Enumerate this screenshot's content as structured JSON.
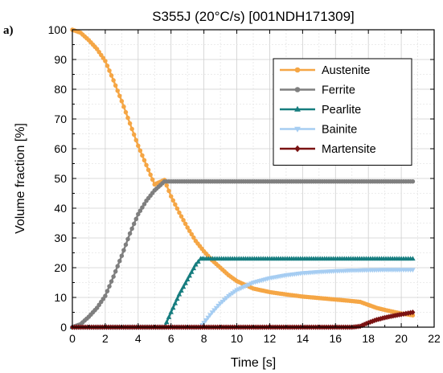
{
  "chart_data": {
    "type": "line",
    "panel_label": "a)",
    "title": "S355J (20°C/s) [001NDH171309]",
    "xlabel": "Time [s]",
    "ylabel": "Volume fraction [%]",
    "xlim": [
      0,
      22
    ],
    "ylim": [
      0,
      100
    ],
    "x_ticks": [
      0,
      2,
      4,
      6,
      8,
      10,
      12,
      14,
      16,
      18,
      20,
      22
    ],
    "y_ticks": [
      0,
      10,
      20,
      30,
      40,
      50,
      60,
      70,
      80,
      90,
      100
    ],
    "grid": true,
    "legend_position": "top-right",
    "series": [
      {
        "name": "Austenite",
        "color": "#F5A645",
        "marker": "circle",
        "points": [
          [
            0,
            100
          ],
          [
            0.5,
            99
          ],
          [
            1,
            96.5
          ],
          [
            1.5,
            93.5
          ],
          [
            2,
            89.5
          ],
          [
            2.5,
            83
          ],
          [
            3,
            76
          ],
          [
            3.5,
            68.5
          ],
          [
            4,
            61
          ],
          [
            4.5,
            54.5
          ],
          [
            5,
            48
          ],
          [
            5.6,
            49.5
          ],
          [
            6,
            44
          ],
          [
            6.5,
            38.5
          ],
          [
            7,
            33.5
          ],
          [
            7.5,
            29
          ],
          [
            8,
            25.5
          ],
          [
            8.5,
            22.5
          ],
          [
            9,
            20
          ],
          [
            9.5,
            17.5
          ],
          [
            10,
            15.5
          ],
          [
            11,
            13
          ],
          [
            12,
            11.8
          ],
          [
            13,
            11
          ],
          [
            14,
            10.3
          ],
          [
            15,
            9.8
          ],
          [
            16,
            9.3
          ],
          [
            17,
            8.8
          ],
          [
            17.5,
            8.5
          ],
          [
            18,
            7.5
          ],
          [
            18.5,
            6.5
          ],
          [
            19,
            5.8
          ],
          [
            20,
            4.6
          ],
          [
            20.7,
            4
          ]
        ]
      },
      {
        "name": "Ferrite",
        "color": "#7F7F7F",
        "marker": "circle",
        "points": [
          [
            0,
            0
          ],
          [
            0.5,
            1
          ],
          [
            1,
            3.5
          ],
          [
            1.5,
            6.5
          ],
          [
            2,
            10.5
          ],
          [
            2.5,
            17
          ],
          [
            3,
            24
          ],
          [
            3.5,
            31.5
          ],
          [
            4,
            38
          ],
          [
            4.5,
            42.5
          ],
          [
            5,
            46
          ],
          [
            5.6,
            49
          ],
          [
            6,
            49
          ],
          [
            8,
            49
          ],
          [
            10,
            49
          ],
          [
            12,
            49
          ],
          [
            14,
            49
          ],
          [
            16,
            49
          ],
          [
            18,
            49
          ],
          [
            20,
            49
          ],
          [
            20.7,
            49
          ]
        ]
      },
      {
        "name": "Pearlite",
        "color": "#167D7F",
        "marker": "triangle-up",
        "points": [
          [
            0,
            0
          ],
          [
            5.6,
            0
          ],
          [
            6,
            5
          ],
          [
            6.5,
            11
          ],
          [
            7,
            16
          ],
          [
            7.5,
            21
          ],
          [
            7.8,
            23
          ],
          [
            8,
            23
          ],
          [
            10,
            23
          ],
          [
            12,
            23
          ],
          [
            14,
            23
          ],
          [
            16,
            23
          ],
          [
            18,
            23
          ],
          [
            20,
            23
          ],
          [
            20.7,
            23
          ]
        ]
      },
      {
        "name": "Bainite",
        "color": "#A6CDF2",
        "marker": "triangle-down",
        "points": [
          [
            0,
            0
          ],
          [
            7.8,
            0
          ],
          [
            8,
            1.5
          ],
          [
            8.5,
            5
          ],
          [
            9,
            8
          ],
          [
            9.5,
            10.5
          ],
          [
            10,
            12.5
          ],
          [
            11,
            15
          ],
          [
            12,
            16.5
          ],
          [
            13,
            17.5
          ],
          [
            14,
            18.2
          ],
          [
            15,
            18.6
          ],
          [
            16,
            18.9
          ],
          [
            17,
            19.1
          ],
          [
            18,
            19.2
          ],
          [
            19,
            19.3
          ],
          [
            20,
            19.3
          ],
          [
            20.7,
            19.3
          ]
        ]
      },
      {
        "name": "Martensite",
        "color": "#7A1212",
        "marker": "diamond",
        "points": [
          [
            0,
            0
          ],
          [
            17,
            0
          ],
          [
            17.5,
            0.3
          ],
          [
            18,
            1.5
          ],
          [
            18.5,
            2.5
          ],
          [
            19,
            3.2
          ],
          [
            19.5,
            3.8
          ],
          [
            20,
            4.3
          ],
          [
            20.7,
            5
          ]
        ]
      }
    ]
  }
}
